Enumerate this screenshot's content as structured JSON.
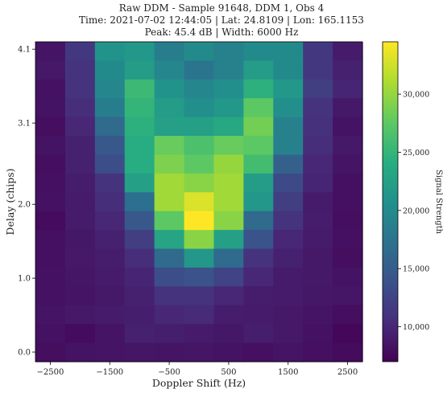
{
  "chart_data": {
    "type": "heatmap",
    "title_lines": [
      "Raw DDM - Sample 91648, DDM 1, Obs 4",
      "Time: 2021-07-02 12:44:05 | Lat: 24.8109 | Lon: 165.1153",
      "Peak: 45.4 dB | Width: 6000 Hz"
    ],
    "xlabel": "Doppler Shift (Hz)",
    "ylabel": "Delay (chips)",
    "colorbar_label": "Signal Strength",
    "colormap": "viridis",
    "color_range": [
      7000,
      34500
    ],
    "x_range": [
      -2750,
      2750
    ],
    "x_ticks": [
      -2500,
      -1500,
      -500,
      500,
      1500,
      2500
    ],
    "x_tick_labels": [
      "−2500",
      "−1500",
      "−500",
      "500",
      "1500",
      "2500"
    ],
    "y_range": [
      -0.13,
      4.2
    ],
    "y_ticks": [
      0.0,
      1.0,
      2.0,
      3.1,
      4.1
    ],
    "y_tick_labels": [
      "0.0",
      "1.0",
      "2.0",
      "3.1",
      "4.1"
    ],
    "colorbar_ticks": [
      10000,
      15000,
      20000,
      25000,
      30000
    ],
    "colorbar_tick_labels": [
      "10,000",
      "15,000",
      "20,000",
      "25,000",
      "30,000"
    ],
    "doppler_bins_hz": [
      -2500,
      -2000,
      -1500,
      -1000,
      -500,
      0,
      500,
      1000,
      1500,
      2000,
      2500
    ],
    "delay_bins_chips": [
      4.2,
      3.93,
      3.66,
      3.4,
      3.13,
      2.86,
      2.6,
      2.33,
      2.06,
      1.8,
      1.53,
      1.26,
      1.0,
      0.73,
      0.47,
      0.2,
      -0.07
    ],
    "values": [
      [
        8500,
        11500,
        21000,
        21500,
        18500,
        20000,
        19000,
        20000,
        20000,
        11500,
        9000
      ],
      [
        8800,
        11000,
        20000,
        22000,
        19500,
        17500,
        19000,
        22000,
        20000,
        11500,
        9500
      ],
      [
        8300,
        11000,
        19500,
        25500,
        21000,
        19500,
        20500,
        24500,
        21500,
        12000,
        9800
      ],
      [
        8400,
        10500,
        18500,
        25000,
        22000,
        20500,
        21500,
        27500,
        20500,
        11000,
        8800
      ],
      [
        8000,
        10000,
        16500,
        24500,
        22500,
        22500,
        23500,
        28500,
        19000,
        10800,
        8400
      ],
      [
        8400,
        9500,
        14500,
        24000,
        28000,
        26500,
        28000,
        27500,
        19000,
        10500,
        8800
      ],
      [
        8000,
        9500,
        13500,
        24000,
        29000,
        27500,
        30000,
        26000,
        15500,
        10000,
        8500
      ],
      [
        8200,
        9200,
        11000,
        22500,
        30500,
        29500,
        30500,
        22000,
        13000,
        9800,
        8200
      ],
      [
        8300,
        9000,
        10500,
        17000,
        30500,
        33000,
        30500,
        21500,
        12000,
        9000,
        8200
      ],
      [
        7800,
        9000,
        10000,
        14500,
        27500,
        34500,
        29500,
        16500,
        11000,
        9200,
        8000
      ],
      [
        8200,
        8700,
        9500,
        12000,
        23000,
        29500,
        22500,
        14000,
        10000,
        9000,
        8200
      ],
      [
        8200,
        8800,
        9200,
        10500,
        16500,
        21500,
        16500,
        11000,
        9500,
        8800,
        8000
      ],
      [
        8300,
        8600,
        9000,
        9800,
        13500,
        14000,
        12500,
        10000,
        9000,
        8800,
        8400
      ],
      [
        8300,
        8500,
        8800,
        9500,
        11000,
        11000,
        10000,
        9200,
        9000,
        8700,
        8600
      ],
      [
        8500,
        8800,
        9000,
        9300,
        10000,
        10200,
        9200,
        9000,
        8800,
        8500,
        8000
      ],
      [
        8300,
        7800,
        8500,
        9500,
        9300,
        9000,
        8700,
        9300,
        8800,
        8300,
        7500
      ],
      [
        8000,
        8400,
        8500,
        8600,
        8500,
        8600,
        8400,
        8200,
        8500,
        8200,
        7800
      ]
    ]
  }
}
